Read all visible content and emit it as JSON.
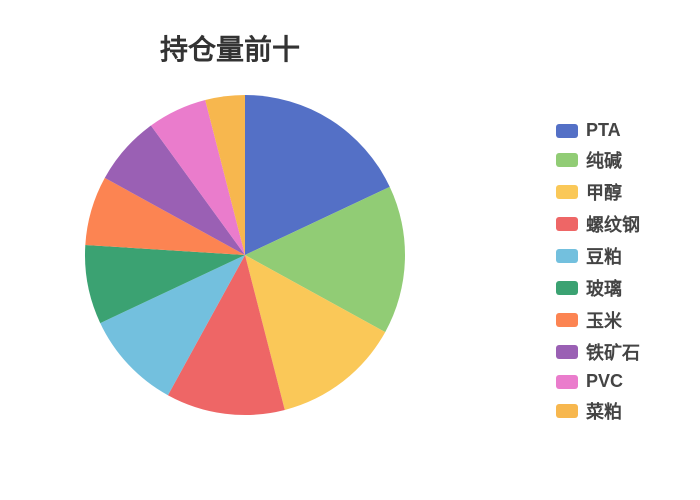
{
  "chart": {
    "type": "pie",
    "title": "持仓量前十",
    "title_fontsize": 28,
    "title_fontweight": 700,
    "title_color": "#333333",
    "background_color": "#ffffff",
    "pie_radius": 160,
    "legend_position": "right",
    "legend_fontsize": 18,
    "legend_fontweight": 700,
    "legend_swatch_width": 22,
    "legend_swatch_height": 14,
    "slices": [
      {
        "label": "PTA",
        "value": 18,
        "color": "#5470c6"
      },
      {
        "label": "纯碱",
        "value": 15,
        "color": "#91cc75"
      },
      {
        "label": "甲醇",
        "value": 13,
        "color": "#fac858"
      },
      {
        "label": "螺纹钢",
        "value": 12,
        "color": "#ee6666"
      },
      {
        "label": "豆粕",
        "value": 10,
        "color": "#73c0de"
      },
      {
        "label": "玻璃",
        "value": 8,
        "color": "#3ba272"
      },
      {
        "label": "玉米",
        "value": 7,
        "color": "#fc8452"
      },
      {
        "label": "铁矿石",
        "value": 7,
        "color": "#9a60b4"
      },
      {
        "label": "PVC",
        "value": 6,
        "color": "#ea7ccc"
      },
      {
        "label": "菜粕",
        "value": 4,
        "color": "#f7b74e"
      }
    ]
  }
}
